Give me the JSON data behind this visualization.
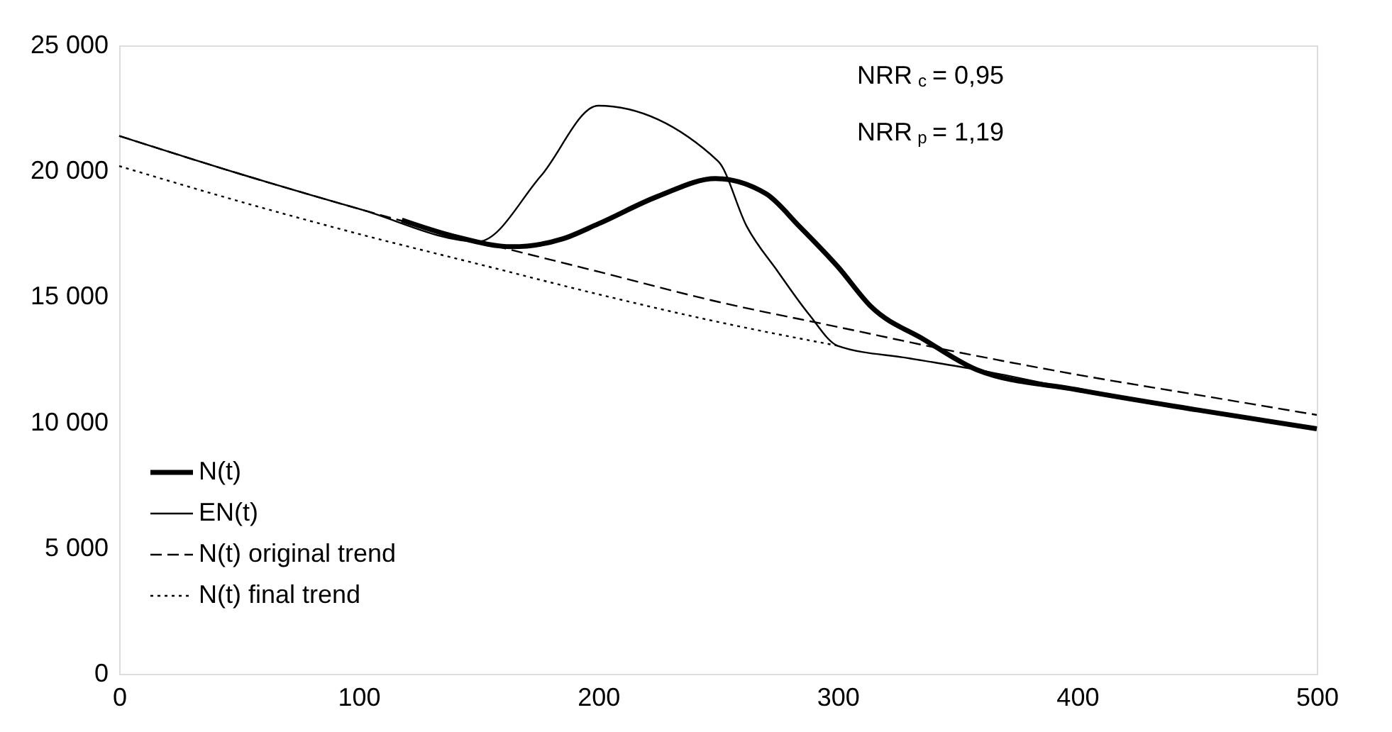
{
  "chart_data": {
    "type": "line",
    "xlim": [
      0,
      500
    ],
    "xticks": [
      0,
      100,
      200,
      300,
      400,
      500
    ],
    "ylim": [
      0,
      25000
    ],
    "yticks": [
      {
        "value": 0,
        "label": "0"
      },
      {
        "value": 5000,
        "label": "5 000"
      },
      {
        "value": 10000,
        "label": "10 000"
      },
      {
        "value": 15000,
        "label": "15 000"
      },
      {
        "value": 20000,
        "label": "20 000"
      },
      {
        "value": 25000,
        "label": "25 000"
      }
    ],
    "grid": false,
    "legend": "bottom left",
    "marker": "none",
    "annotations": [
      "NRR$_{c}$ = 0,95",
      "NRR$_{p}$ = 1,19"
    ],
    "series": [
      {
        "name": "N(t)",
        "color": "#000000",
        "line_style": "solid",
        "x": [
          118,
          140,
          164,
          185,
          200,
          225,
          249,
          270,
          284,
          300,
          314,
          336,
          358,
          400,
          450,
          500
        ],
        "values": [
          18050,
          17400,
          16990,
          17300,
          17900,
          19000,
          19700,
          19100,
          17800,
          16200,
          14600,
          13300,
          12100,
          11300,
          10500,
          9750
        ]
      },
      {
        "name": "EN(t)",
        "color": "#000000",
        "line_style": "solid",
        "x": [
          0,
          50,
          100,
          150,
          176,
          200,
          250,
          262,
          275,
          288,
          300,
          330,
          358,
          400,
          450,
          500
        ],
        "values": [
          21400,
          19900,
          18500,
          17200,
          19800,
          22600,
          20400,
          17800,
          16000,
          14300,
          13050,
          12550,
          12100,
          11300,
          10500,
          9750
        ]
      },
      {
        "name": "N(t) original trend",
        "color": "#000000",
        "line_style": "dashed",
        "x": [
          0,
          50,
          100,
          150,
          200,
          250,
          300,
          350,
          400,
          450,
          500
        ],
        "values": [
          21400,
          19900,
          18500,
          17200,
          16000,
          14800,
          13800,
          12800,
          11900,
          11100,
          10300
        ]
      },
      {
        "name": "N(t) final trend",
        "color": "#000000",
        "line_style": "dotted",
        "x": [
          0,
          50,
          100,
          150,
          200,
          250,
          300
        ],
        "values": [
          20200,
          18800,
          17500,
          16300,
          15100,
          14000,
          13050
        ]
      }
    ]
  }
}
